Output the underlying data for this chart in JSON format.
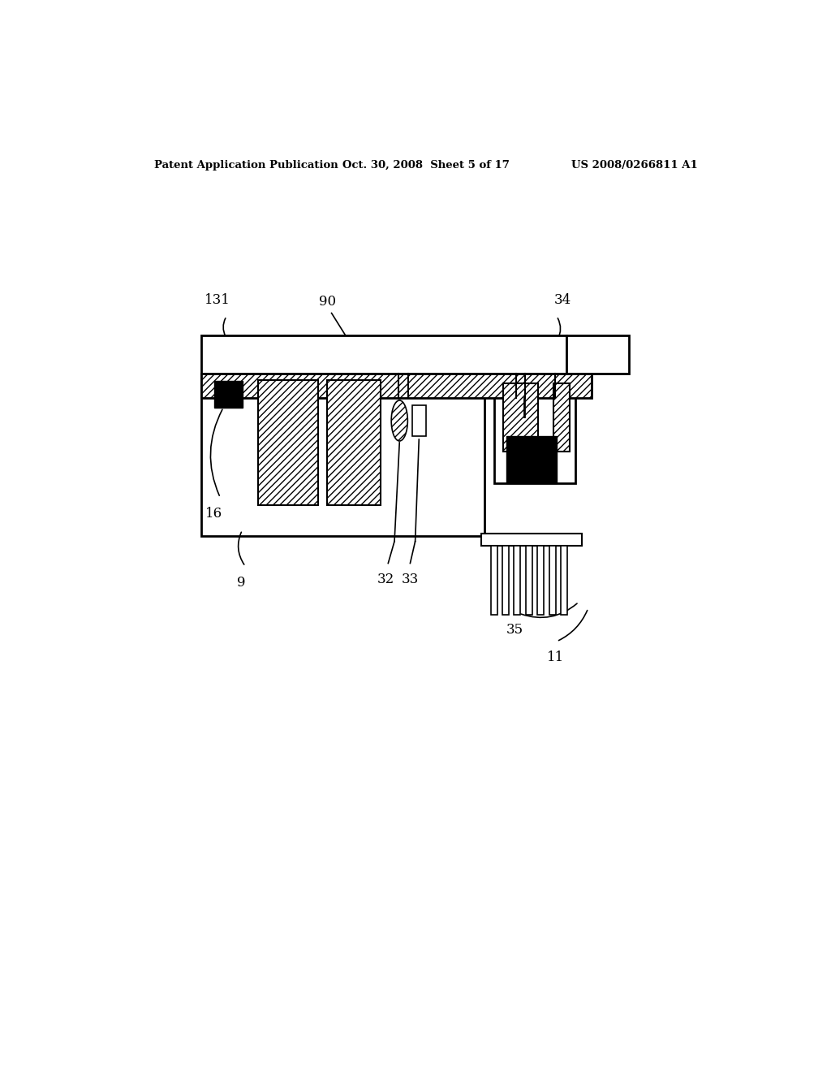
{
  "bg_color": "#ffffff",
  "header_left": "Patent Application Publication",
  "header_center": "Oct. 30, 2008  Sheet 5 of 17",
  "header_right": "US 2008/0266811 A1",
  "fig_width": 10.24,
  "fig_height": 13.2,
  "dpi": 100
}
